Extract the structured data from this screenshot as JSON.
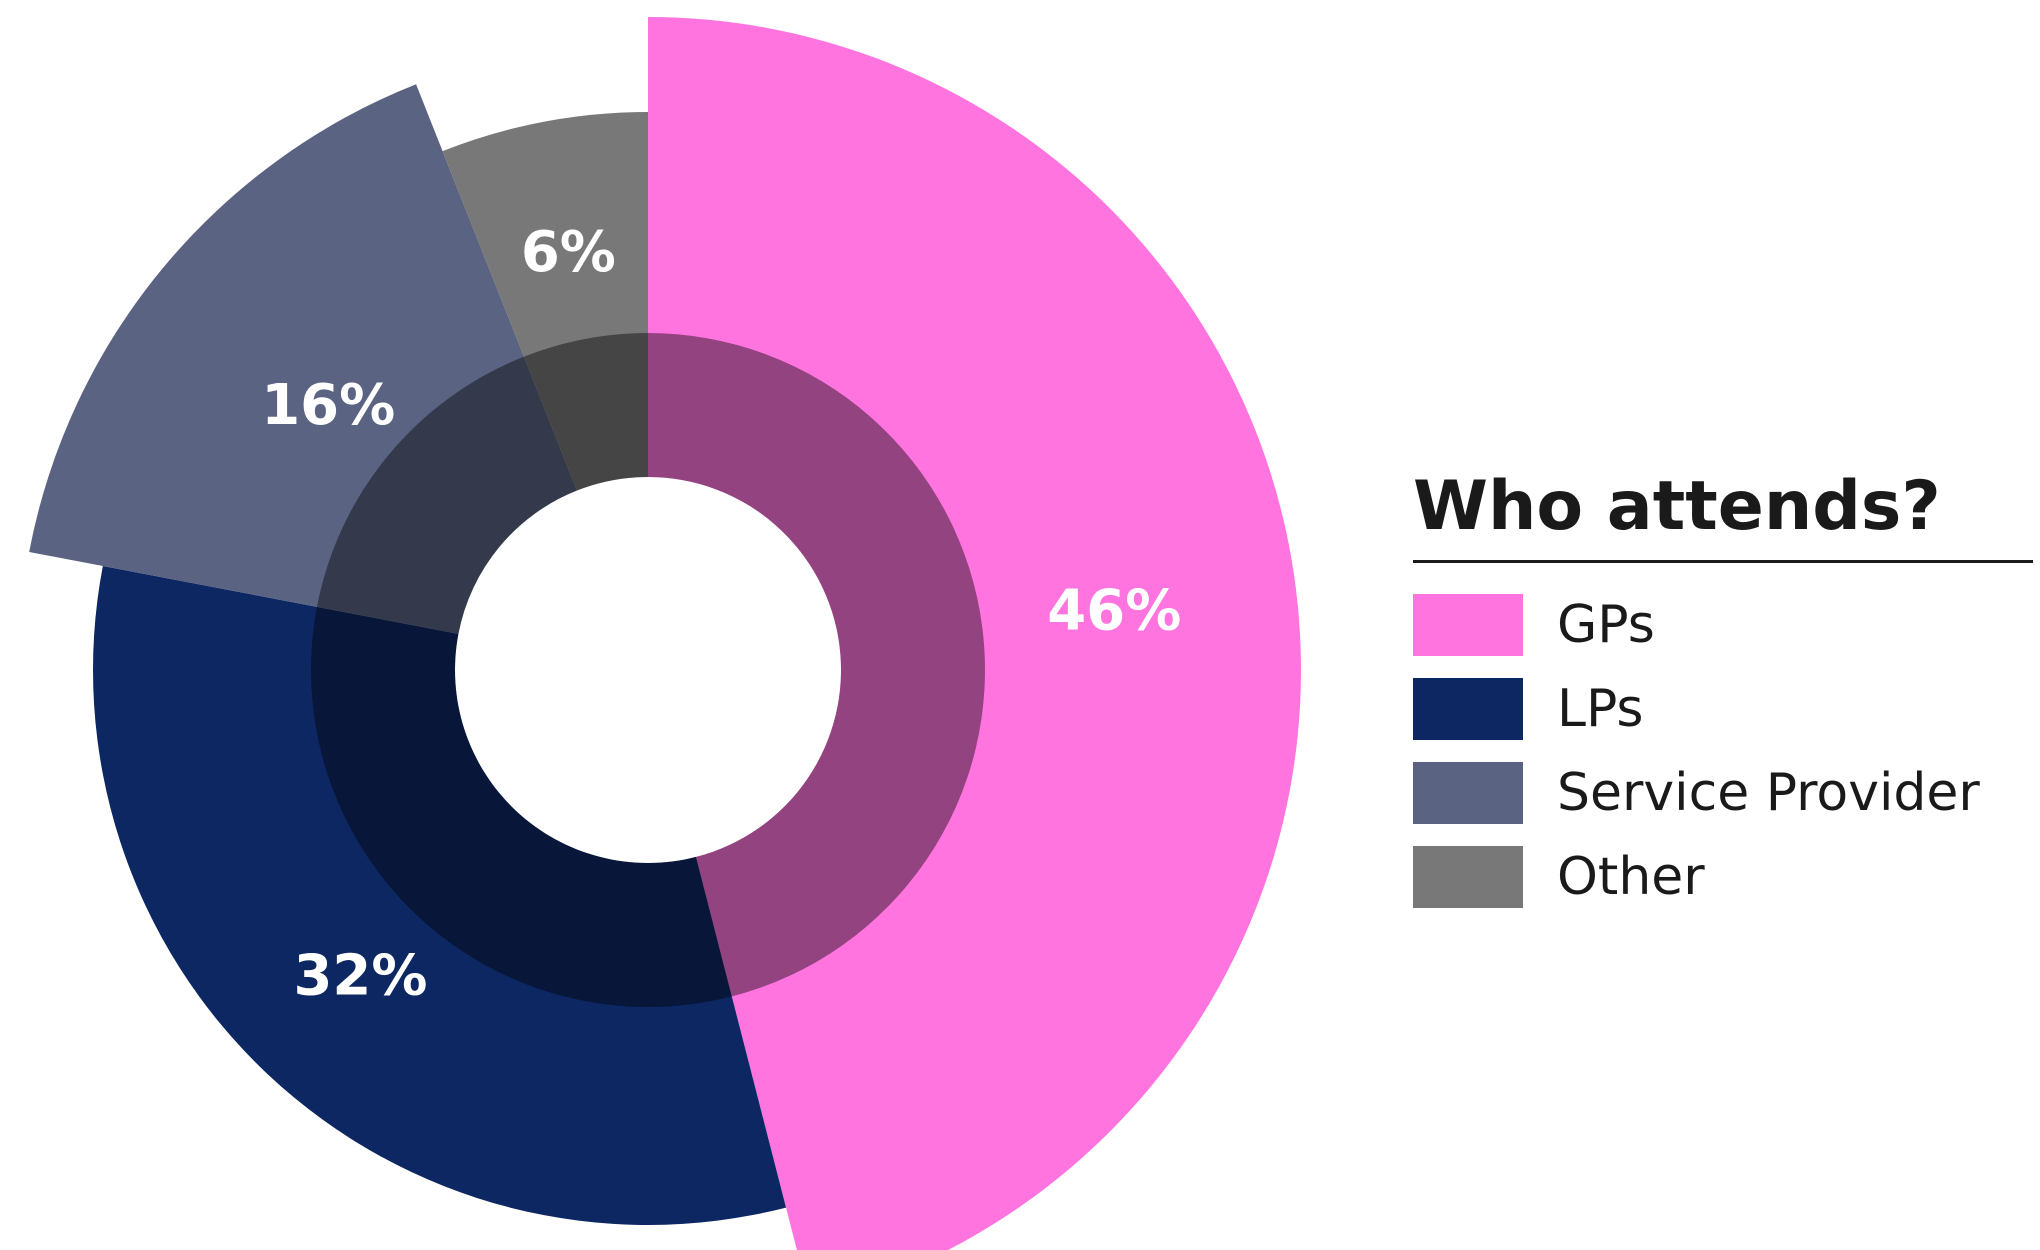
{
  "chart_data": {
    "type": "pie",
    "series": [
      {
        "name": "GPs",
        "value": 46,
        "label": "46%",
        "color": "#ff74df"
      },
      {
        "name": "LPs",
        "value": 32,
        "label": "32%",
        "color": "#0d2762"
      },
      {
        "name": "Service Provider",
        "value": 16,
        "label": "16%",
        "color": "#5a6382"
      },
      {
        "name": "Other",
        "value": 6,
        "label": "6%",
        "color": "#787878"
      }
    ],
    "legend": {
      "title": "Who attends?",
      "placement": "right",
      "items": [
        "GPs",
        "LPs",
        "Service Provider",
        "Other"
      ]
    }
  }
}
